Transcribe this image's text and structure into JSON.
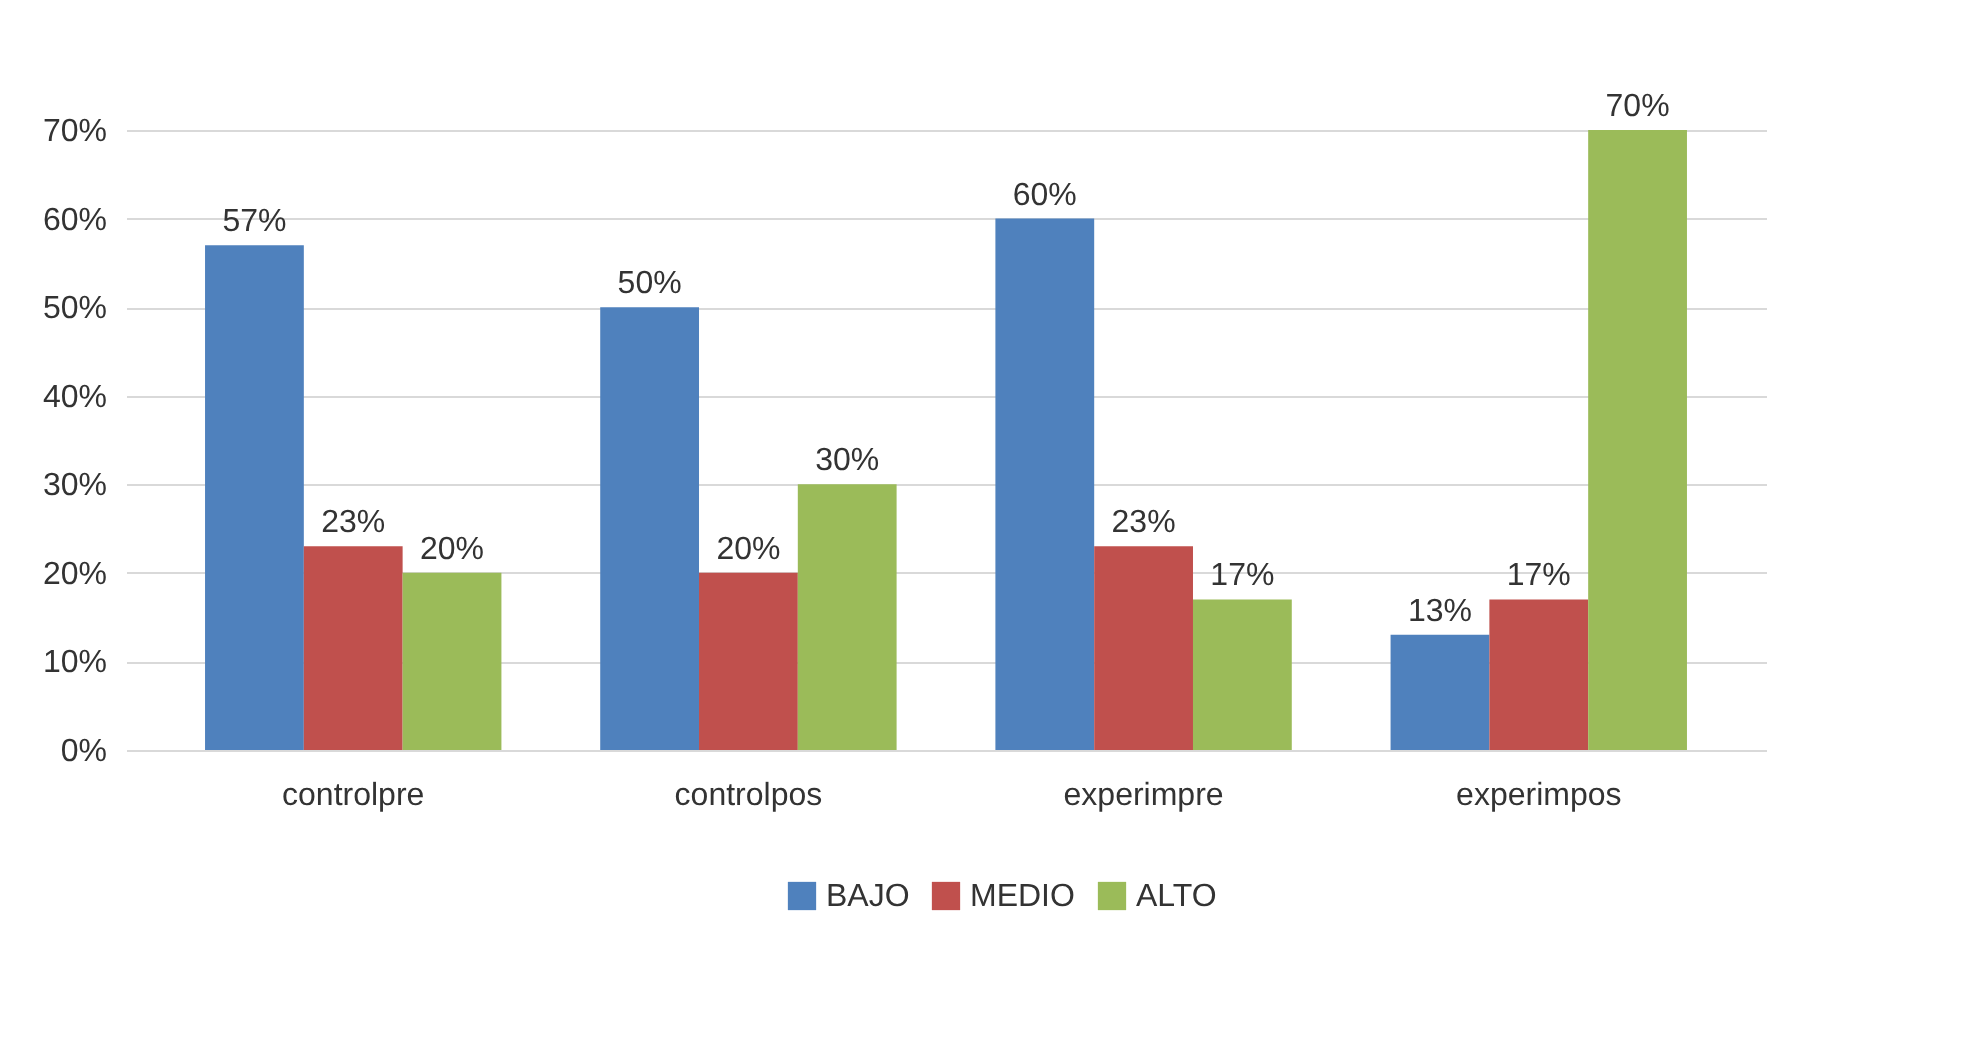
{
  "chart_data": {
    "type": "bar",
    "categories": [
      "controlpre",
      "controlpos",
      "experimpre",
      "experimpos"
    ],
    "series": [
      {
        "name": "BAJO",
        "color": "#4f81bd",
        "values": [
          57,
          50,
          60,
          13
        ],
        "value_labels": [
          "57%",
          "50%",
          "60%",
          "13%"
        ]
      },
      {
        "name": "MEDIO",
        "color": "#c0504d",
        "values": [
          23,
          20,
          23,
          17
        ],
        "value_labels": [
          "23%",
          "20%",
          "23%",
          "17%"
        ]
      },
      {
        "name": "ALTO",
        "color": "#9bbb59",
        "values": [
          20,
          30,
          17,
          70
        ],
        "value_labels": [
          "20%",
          "30%",
          "17%",
          "70%"
        ]
      }
    ],
    "ylim": [
      0,
      70
    ],
    "yticks": [
      {
        "value": 0,
        "label": "0%"
      },
      {
        "value": 10,
        "label": "10%"
      },
      {
        "value": 20,
        "label": "20%"
      },
      {
        "value": 30,
        "label": "30%"
      },
      {
        "value": 40,
        "label": "40%"
      },
      {
        "value": 50,
        "label": "50%"
      },
      {
        "value": 60,
        "label": "60%"
      },
      {
        "value": 70,
        "label": "70%"
      }
    ],
    "grid": "y",
    "legend": "bottom"
  }
}
